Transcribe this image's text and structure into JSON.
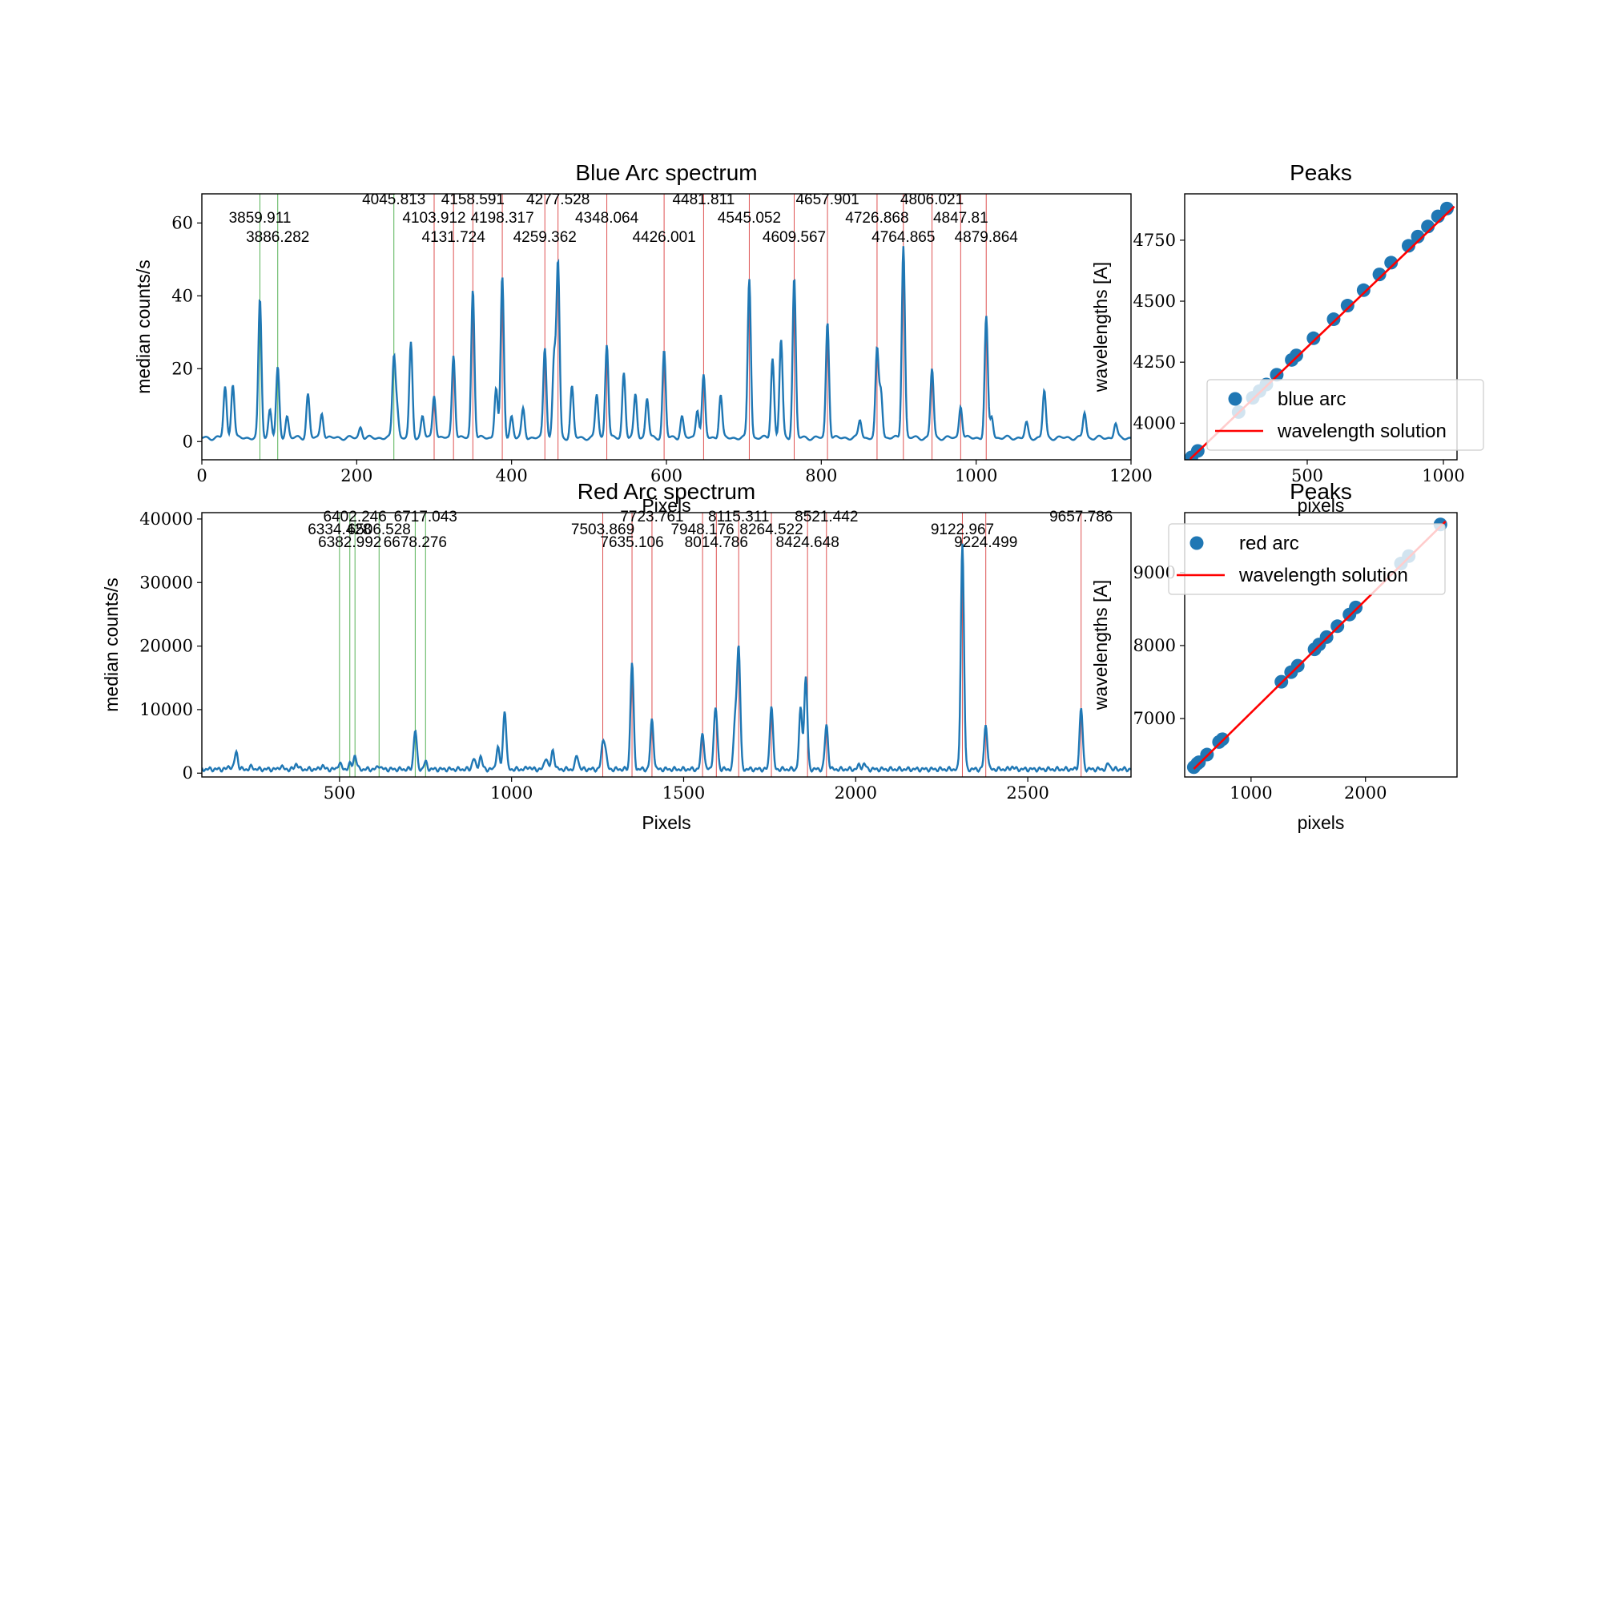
{
  "chart_data": [
    {
      "type": "line",
      "title": "Blue Arc spectrum",
      "xlabel": "Pixels",
      "ylabel": "median counts/s",
      "xlim": [
        0,
        1200
      ],
      "ylim": [
        -5,
        68
      ],
      "xticks": [
        0,
        200,
        400,
        600,
        800,
        1000,
        1200
      ],
      "yticks": [
        0,
        20,
        40,
        60
      ],
      "colors": {
        "spectrum": "#1f77b4",
        "unused_line": "#2ca02c",
        "used_line": "#d62728"
      },
      "peaks": [
        [
          30,
          14
        ],
        [
          40,
          15
        ],
        [
          75,
          38
        ],
        [
          88,
          8
        ],
        [
          98,
          19
        ],
        [
          110,
          6
        ],
        [
          137,
          12
        ],
        [
          155,
          7
        ],
        [
          205,
          3
        ],
        [
          248,
          22
        ],
        [
          252,
          8
        ],
        [
          270,
          26
        ],
        [
          285,
          6
        ],
        [
          300,
          12
        ],
        [
          325,
          23
        ],
        [
          350,
          41
        ],
        [
          380,
          14
        ],
        [
          388,
          44
        ],
        [
          400,
          6
        ],
        [
          415,
          8
        ],
        [
          443,
          25
        ],
        [
          455,
          22
        ],
        [
          460,
          48
        ],
        [
          478,
          14
        ],
        [
          510,
          12
        ],
        [
          523,
          26
        ],
        [
          545,
          18
        ],
        [
          560,
          12
        ],
        [
          575,
          11
        ],
        [
          597,
          24
        ],
        [
          620,
          6
        ],
        [
          640,
          8
        ],
        [
          648,
          17
        ],
        [
          670,
          12
        ],
        [
          707,
          44
        ],
        [
          737,
          22
        ],
        [
          748,
          27
        ],
        [
          765,
          44
        ],
        [
          808,
          32
        ],
        [
          850,
          5
        ],
        [
          872,
          24
        ],
        [
          877,
          13
        ],
        [
          906,
          53
        ],
        [
          943,
          19
        ],
        [
          980,
          9
        ],
        [
          1013,
          33
        ],
        [
          1020,
          6
        ],
        [
          1065,
          4
        ],
        [
          1088,
          13
        ],
        [
          1140,
          7
        ],
        [
          1180,
          4
        ]
      ],
      "reference_lines": [
        {
          "x": 75,
          "label": "3859.911",
          "used": false
        },
        {
          "x": 98,
          "label": "3886.282",
          "used": false
        },
        {
          "x": 248,
          "label": "4045.813",
          "used": false
        },
        {
          "x": 300,
          "label": "4103.912",
          "used": true
        },
        {
          "x": 325,
          "label": "4131.724",
          "used": true
        },
        {
          "x": 350,
          "label": "4158.591",
          "used": true
        },
        {
          "x": 388,
          "label": "4198.317",
          "used": true
        },
        {
          "x": 443,
          "label": "4259.362",
          "used": true
        },
        {
          "x": 460,
          "label": "4277.528",
          "used": true
        },
        {
          "x": 523,
          "label": "4348.064",
          "used": true
        },
        {
          "x": 597,
          "label": "4426.001",
          "used": true
        },
        {
          "x": 648,
          "label": "4481.811",
          "used": true
        },
        {
          "x": 707,
          "label": "4545.052",
          "used": true
        },
        {
          "x": 765,
          "label": "4609.567",
          "used": true
        },
        {
          "x": 808,
          "label": "4657.901",
          "used": true
        },
        {
          "x": 872,
          "label": "4726.868",
          "used": true
        },
        {
          "x": 906,
          "label": "4764.865",
          "used": true
        },
        {
          "x": 943,
          "label": "4806.021",
          "used": true
        },
        {
          "x": 980,
          "label": "4847.81",
          "used": true
        },
        {
          "x": 1013,
          "label": "4879.864",
          "used": true
        }
      ]
    },
    {
      "type": "scatter",
      "title": "Peaks",
      "xlabel": "pixels",
      "ylabel": "wavelengths [A]",
      "xlim": [
        50,
        1050
      ],
      "ylim": [
        3850,
        4940
      ],
      "xticks": [
        500,
        1000
      ],
      "yticks": [
        4000,
        4250,
        4500,
        4750
      ],
      "legend": {
        "position": "lower-right",
        "entries": [
          "blue arc",
          "wavelength solution"
        ]
      },
      "fit": {
        "x": [
          70,
          1040
        ],
        "y": [
          3853,
          4888
        ]
      },
      "points": [
        [
          75,
          3859.911
        ],
        [
          98,
          3886.282
        ],
        [
          248,
          4045.813
        ],
        [
          300,
          4103.912
        ],
        [
          325,
          4131.724
        ],
        [
          350,
          4158.591
        ],
        [
          388,
          4198.317
        ],
        [
          443,
          4259.362
        ],
        [
          460,
          4277.528
        ],
        [
          523,
          4348.064
        ],
        [
          597,
          4426.001
        ],
        [
          648,
          4481.811
        ],
        [
          707,
          4545.052
        ],
        [
          765,
          4609.567
        ],
        [
          808,
          4657.901
        ],
        [
          872,
          4726.868
        ],
        [
          906,
          4764.865
        ],
        [
          943,
          4806.021
        ],
        [
          980,
          4847.81
        ],
        [
          1013,
          4879.864
        ]
      ]
    },
    {
      "type": "line",
      "title": "Red Arc spectrum",
      "xlabel": "Pixels",
      "ylabel": "median counts/s",
      "xlim": [
        100,
        2800
      ],
      "ylim": [
        -600,
        41000
      ],
      "xticks": [
        500,
        1000,
        1500,
        2000,
        2500
      ],
      "yticks": [
        0,
        10000,
        20000,
        30000,
        40000
      ],
      "colors": {
        "spectrum": "#1f77b4",
        "unused_line": "#2ca02c",
        "used_line": "#d62728"
      },
      "peaks": [
        [
          180,
          500
        ],
        [
          200,
          2800
        ],
        [
          245,
          400
        ],
        [
          330,
          500
        ],
        [
          375,
          900
        ],
        [
          450,
          600
        ],
        [
          500,
          1000
        ],
        [
          530,
          800
        ],
        [
          545,
          2200
        ],
        [
          615,
          600
        ],
        [
          720,
          6200
        ],
        [
          750,
          1100
        ],
        [
          890,
          1700
        ],
        [
          910,
          2000
        ],
        [
          960,
          3500
        ],
        [
          980,
          9400
        ],
        [
          1050,
          400
        ],
        [
          1100,
          1900
        ],
        [
          1120,
          3000
        ],
        [
          1190,
          2200
        ],
        [
          1265,
          3600
        ],
        [
          1272,
          2800
        ],
        [
          1350,
          16800
        ],
        [
          1408,
          7800
        ],
        [
          1555,
          5800
        ],
        [
          1590,
          4800
        ],
        [
          1595,
          6200
        ],
        [
          1650,
          8000
        ],
        [
          1660,
          19000
        ],
        [
          1755,
          10200
        ],
        [
          1840,
          9500
        ],
        [
          1855,
          14500
        ],
        [
          1915,
          7000
        ],
        [
          2010,
          600
        ],
        [
          2025,
          800
        ],
        [
          2310,
          35500
        ],
        [
          2378,
          7000
        ],
        [
          2455,
          400
        ],
        [
          2655,
          9600
        ],
        [
          2735,
          900
        ]
      ],
      "reference_lines": [
        {
          "x": 500,
          "label": "6334.428",
          "used": false
        },
        {
          "x": 530,
          "label": "6382.992",
          "used": false
        },
        {
          "x": 545,
          "label": "6402.246",
          "used": false
        },
        {
          "x": 615,
          "label": "6506.528",
          "used": false
        },
        {
          "x": 720,
          "label": "6678.276",
          "used": false
        },
        {
          "x": 750,
          "label": "6717.043",
          "used": false
        },
        {
          "x": 1265,
          "label": "7503.869",
          "used": true
        },
        {
          "x": 1350,
          "label": "7635.106",
          "used": true
        },
        {
          "x": 1408,
          "label": "7723.761",
          "used": true
        },
        {
          "x": 1555,
          "label": "7948.176",
          "used": true
        },
        {
          "x": 1595,
          "label": "8014.786",
          "used": true
        },
        {
          "x": 1660,
          "label": "8115.311",
          "used": true
        },
        {
          "x": 1755,
          "label": "8264.522",
          "used": true
        },
        {
          "x": 1860,
          "label": "8424.648",
          "used": true
        },
        {
          "x": 1915,
          "label": "8521.442",
          "used": true
        },
        {
          "x": 2310,
          "label": "9122.967",
          "used": true
        },
        {
          "x": 2378,
          "label": "9224.499",
          "used": true
        },
        {
          "x": 2655,
          "label": "9657.786",
          "used": true
        }
      ]
    },
    {
      "type": "scatter",
      "title": "Peaks",
      "xlabel": "pixels",
      "ylabel": "wavelengths [A]",
      "xlim": [
        420,
        2800
      ],
      "ylim": [
        6200,
        9820
      ],
      "xticks": [
        1000,
        2000
      ],
      "yticks": [
        7000,
        8000,
        9000
      ],
      "legend": {
        "position": "upper-left",
        "entries": [
          "red arc",
          "wavelength solution"
        ]
      },
      "fit": {
        "x": [
          500,
          2700
        ],
        "y": [
          6310,
          9700
        ]
      },
      "points": [
        [
          500,
          6334.428
        ],
        [
          530,
          6382.992
        ],
        [
          545,
          6402.246
        ],
        [
          615,
          6506.528
        ],
        [
          720,
          6678.276
        ],
        [
          750,
          6717.043
        ],
        [
          1265,
          7503.869
        ],
        [
          1350,
          7635.106
        ],
        [
          1408,
          7723.761
        ],
        [
          1555,
          7948.176
        ],
        [
          1595,
          8014.786
        ],
        [
          1660,
          8115.311
        ],
        [
          1755,
          8264.522
        ],
        [
          1860,
          8424.648
        ],
        [
          1915,
          8521.442
        ],
        [
          2310,
          9122.967
        ],
        [
          2378,
          9224.499
        ],
        [
          2655,
          9657.786
        ]
      ]
    }
  ]
}
